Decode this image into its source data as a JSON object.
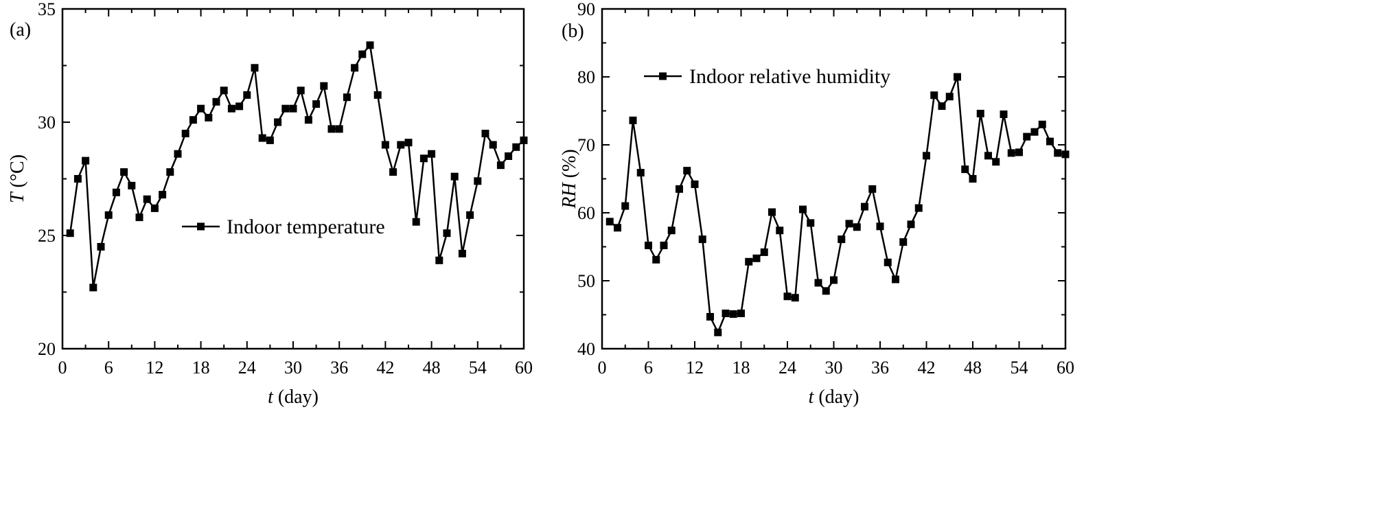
{
  "chart_data": [
    {
      "type": "line",
      "panel_label": "(a)",
      "xlabel_italic": "t",
      "xlabel_rest": " (day)",
      "ylabel_italic": "T",
      "ylabel_rest": " (°C)",
      "xlim": [
        0,
        60
      ],
      "ylim": [
        20,
        35
      ],
      "xticks": [
        0,
        6,
        12,
        18,
        24,
        30,
        36,
        42,
        48,
        54,
        60
      ],
      "yticks": [
        20,
        25,
        30,
        35
      ],
      "legend_position": "center",
      "series": [
        {
          "name": "Indoor temperature",
          "x": [
            1,
            2,
            3,
            4,
            5,
            6,
            7,
            8,
            9,
            10,
            11,
            12,
            13,
            14,
            15,
            16,
            17,
            18,
            19,
            20,
            21,
            22,
            23,
            24,
            25,
            26,
            27,
            28,
            29,
            30,
            31,
            32,
            33,
            34,
            35,
            36,
            37,
            38,
            39,
            40,
            41,
            42,
            43,
            44,
            45,
            46,
            47,
            48,
            49,
            50,
            51,
            52,
            53,
            54,
            55,
            56,
            57,
            58,
            59,
            60
          ],
          "y": [
            25.1,
            27.5,
            28.3,
            22.7,
            24.5,
            25.9,
            26.9,
            27.8,
            27.2,
            25.8,
            26.6,
            26.2,
            26.8,
            27.8,
            28.6,
            29.5,
            30.1,
            30.6,
            30.2,
            30.9,
            31.4,
            30.6,
            30.7,
            31.2,
            32.4,
            29.3,
            29.2,
            30.0,
            30.6,
            30.6,
            31.4,
            30.1,
            30.8,
            31.6,
            29.7,
            29.7,
            31.1,
            32.4,
            33.0,
            33.4,
            31.2,
            29.0,
            27.8,
            29.0,
            29.1,
            25.6,
            28.4,
            28.6,
            23.9,
            25.1,
            27.6,
            24.2,
            25.9,
            27.4,
            29.5,
            29.0,
            28.1,
            28.5,
            28.9,
            29.2
          ]
        }
      ]
    },
    {
      "type": "line",
      "panel_label": "(b)",
      "xlabel_italic": "t",
      "xlabel_rest": " (day)",
      "ylabel_italic": "RH",
      "ylabel_rest": " (%)",
      "xlim": [
        0,
        60
      ],
      "ylim": [
        40,
        90
      ],
      "xticks": [
        0,
        6,
        12,
        18,
        24,
        30,
        36,
        42,
        48,
        54,
        60
      ],
      "yticks": [
        40,
        50,
        60,
        70,
        80,
        90
      ],
      "legend_position": "top-left",
      "series": [
        {
          "name": "Indoor relative humidity",
          "x": [
            1,
            2,
            3,
            4,
            5,
            6,
            7,
            8,
            9,
            10,
            11,
            12,
            13,
            14,
            15,
            16,
            17,
            18,
            19,
            20,
            21,
            22,
            23,
            24,
            25,
            26,
            27,
            28,
            29,
            30,
            31,
            32,
            33,
            34,
            35,
            36,
            37,
            38,
            39,
            40,
            41,
            42,
            43,
            44,
            45,
            46,
            47,
            48,
            49,
            50,
            51,
            52,
            53,
            54,
            55,
            56,
            57,
            58,
            59,
            60
          ],
          "y": [
            58.7,
            57.8,
            61.0,
            73.6,
            65.9,
            55.2,
            53.1,
            55.2,
            57.4,
            63.5,
            66.2,
            64.2,
            56.1,
            44.7,
            42.4,
            45.2,
            45.1,
            45.2,
            52.8,
            53.3,
            54.2,
            60.1,
            57.4,
            47.7,
            47.5,
            60.5,
            58.5,
            49.7,
            48.5,
            50.1,
            56.1,
            58.4,
            57.9,
            60.9,
            63.5,
            58.0,
            52.7,
            50.2,
            55.7,
            58.3,
            60.7,
            68.4,
            77.3,
            75.7,
            77.1,
            80.0,
            66.4,
            65.0,
            74.6,
            68.4,
            67.5,
            74.5,
            68.8,
            68.9,
            71.2,
            71.9,
            73.0,
            70.5,
            68.8,
            68.6
          ]
        }
      ]
    }
  ]
}
